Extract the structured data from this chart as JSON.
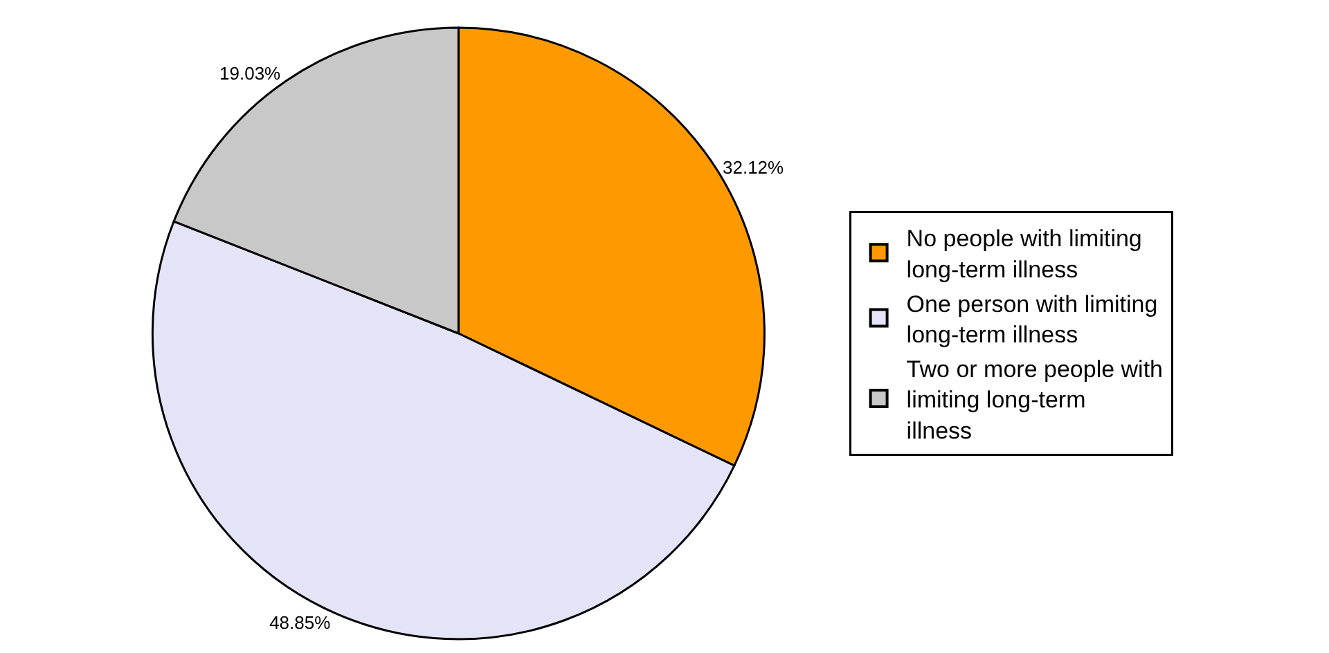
{
  "chart_data": {
    "type": "pie",
    "categories": [
      "No people with limiting long-term illness",
      "One person with limiting long-term illness",
      "Two or more people with limiting long-term illness"
    ],
    "values": [
      32.12,
      48.85,
      19.03
    ],
    "value_labels": [
      "32.12%",
      "48.85%",
      "19.03%"
    ],
    "colors": [
      "#ff9900",
      "#e4e4f8",
      "#c8c8c8"
    ],
    "legend": "right"
  }
}
